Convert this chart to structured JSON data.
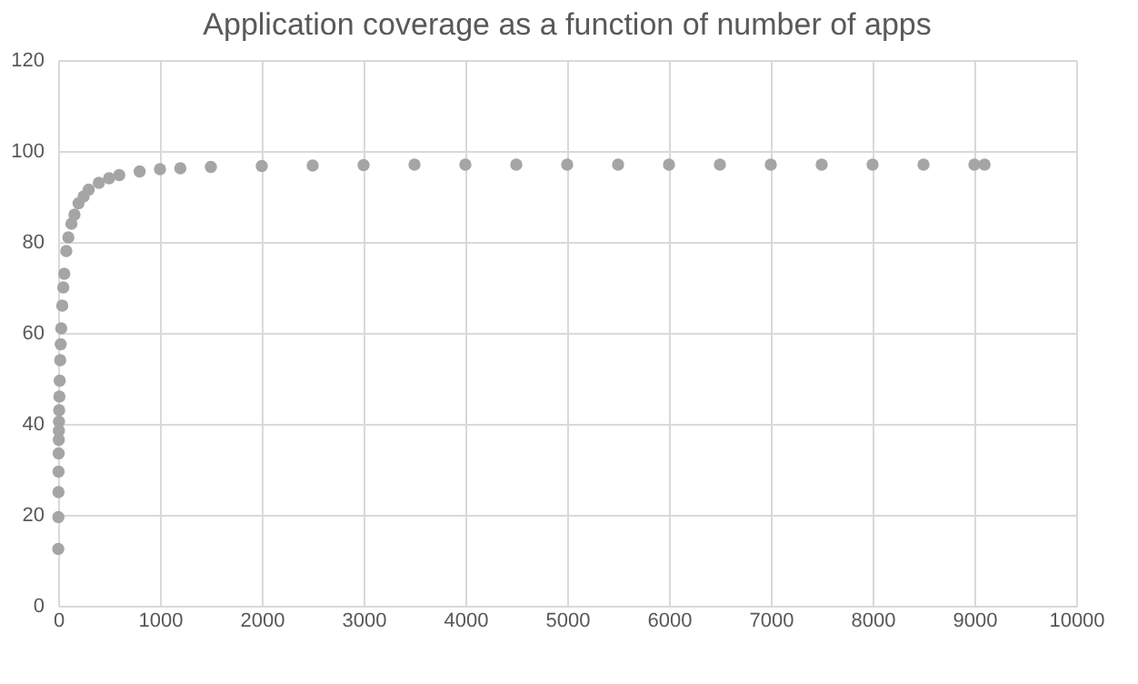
{
  "chart_data": {
    "type": "scatter",
    "title": "Application coverage as a function of number of apps",
    "x": [
      1,
      2,
      3,
      4,
      5,
      6,
      7,
      8,
      10,
      12,
      15,
      20,
      25,
      30,
      40,
      50,
      60,
      80,
      100,
      130,
      160,
      200,
      250,
      300,
      400,
      500,
      600,
      800,
      1000,
      1200,
      1500,
      2000,
      2500,
      3000,
      3500,
      4000,
      4500,
      5000,
      5500,
      6000,
      6500,
      7000,
      7500,
      8000,
      8500,
      9000,
      9100
    ],
    "series": [
      {
        "color": "#a5a5a5",
        "values": [
          12.5,
          19.5,
          25,
          29.5,
          33.5,
          36.5,
          38.5,
          40.5,
          43,
          46,
          49.5,
          54,
          57.5,
          61,
          66,
          70,
          73,
          78,
          81,
          84,
          86,
          88.5,
          90,
          91.5,
          93,
          94,
          94.7,
          95.5,
          96,
          96.2,
          96.5,
          96.7,
          96.8,
          96.9,
          97,
          97,
          97,
          97,
          97,
          97,
          97,
          97,
          97,
          97,
          97,
          97,
          97
        ]
      }
    ],
    "xlim": [
      0,
      10000
    ],
    "xticks": [
      0,
      1000,
      2000,
      3000,
      4000,
      5000,
      6000,
      7000,
      8000,
      9000,
      10000
    ],
    "ylim": [
      0,
      120
    ],
    "yticks": [
      0,
      20,
      40,
      60,
      80,
      100,
      120
    ],
    "grid": true,
    "marker": "circle",
    "legend": false
  }
}
